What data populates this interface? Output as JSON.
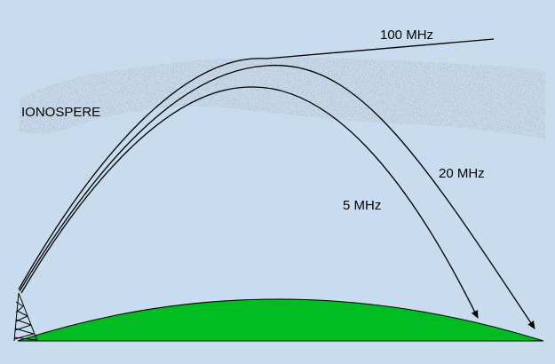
{
  "diagram": {
    "layer_label": "IONOSPERE",
    "frequencies": [
      {
        "label": "100 MHz",
        "behavior": "passes through ionosphere"
      },
      {
        "label": "20 MHz",
        "behavior": "refracted back to earth"
      },
      {
        "label": "5 MHz",
        "behavior": "refracted back to earth"
      }
    ]
  },
  "colors": {
    "background": "#c8dcf0",
    "earth": "#00bb22",
    "earth_outline": "#000000",
    "ray": "#000000",
    "ionosphere_dots": "#444444",
    "tower": "#000000"
  },
  "icons": {
    "transmitter": "radio-tower-icon",
    "ground": "earth-curve",
    "arrow": "arrowhead-icon"
  }
}
